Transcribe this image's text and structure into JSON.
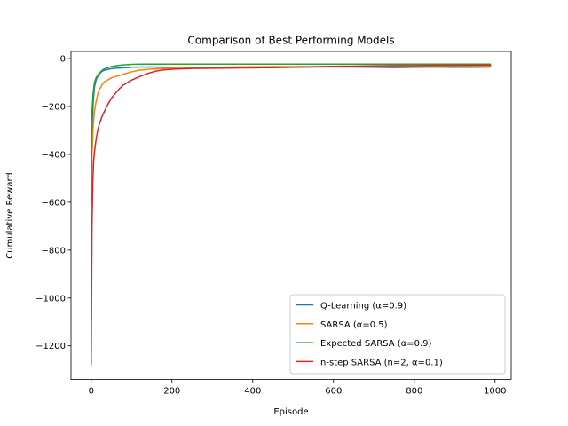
{
  "chart_data": {
    "type": "line",
    "title": "Comparison of Best Performing Models",
    "xlabel": "Episode",
    "ylabel": "Cumulative Reward",
    "xlim": [
      -50,
      1040
    ],
    "ylim": [
      -1340,
      30
    ],
    "xticks": [
      0,
      200,
      400,
      600,
      800,
      1000
    ],
    "yticks": [
      0,
      -200,
      -400,
      -600,
      -800,
      -1000,
      -1200
    ],
    "grid": false,
    "legend_position": "lower-right",
    "series": [
      {
        "name": "Q-Learning (α=0.9)",
        "color": "#1f77b4",
        "x": [
          0,
          2,
          5,
          8,
          12,
          16,
          20,
          25,
          30,
          40,
          50,
          60,
          80,
          100,
          120,
          150,
          200,
          250,
          300,
          350,
          400,
          450,
          500,
          550,
          600,
          650,
          700,
          750,
          800,
          850,
          900,
          950,
          990
        ],
        "y": [
          -590,
          -300,
          -180,
          -120,
          -90,
          -75,
          -65,
          -55,
          -50,
          -45,
          -42,
          -40,
          -38,
          -36,
          -35,
          -35,
          -36,
          -36,
          -36,
          -37,
          -38,
          -37,
          -36,
          -35,
          -34,
          -35,
          -36,
          -37,
          -36,
          -35,
          -36,
          -36,
          -35
        ]
      },
      {
        "name": "SARSA (α=0.5)",
        "color": "#ff7f0e",
        "x": [
          0,
          2,
          5,
          8,
          12,
          16,
          20,
          25,
          30,
          40,
          50,
          60,
          80,
          100,
          120,
          150,
          200,
          250,
          300,
          350,
          400,
          450,
          500,
          550,
          600,
          650,
          700,
          750,
          800,
          850,
          900,
          950,
          990
        ],
        "y": [
          -750,
          -400,
          -280,
          -220,
          -180,
          -150,
          -130,
          -115,
          -100,
          -90,
          -80,
          -75,
          -65,
          -55,
          -48,
          -43,
          -40,
          -38,
          -36,
          -35,
          -34,
          -33,
          -33,
          -33,
          -32,
          -32,
          -32,
          -32,
          -31,
          -31,
          -31,
          -31,
          -31
        ]
      },
      {
        "name": "Expected SARSA (α=0.9)",
        "color": "#2ca02c",
        "x": [
          0,
          2,
          5,
          8,
          12,
          16,
          20,
          25,
          30,
          40,
          50,
          60,
          80,
          100,
          120,
          150,
          200,
          250,
          300,
          350,
          400,
          450,
          500,
          550,
          600,
          650,
          700,
          750,
          800,
          850,
          900,
          950,
          990
        ],
        "y": [
          -600,
          -220,
          -140,
          -100,
          -80,
          -70,
          -60,
          -52,
          -45,
          -38,
          -33,
          -30,
          -26,
          -24,
          -23,
          -23,
          -23,
          -23,
          -23,
          -23,
          -23,
          -23,
          -23,
          -23,
          -23,
          -23,
          -23,
          -23,
          -23,
          -23,
          -23,
          -23,
          -23
        ]
      },
      {
        "name": "n-step SARSA (n=2, α=0.1)",
        "color": "#d62728",
        "x": [
          0,
          2,
          4,
          6,
          8,
          12,
          16,
          20,
          25,
          30,
          40,
          50,
          60,
          70,
          80,
          90,
          100,
          120,
          140,
          160,
          180,
          200,
          250,
          300,
          350,
          400,
          450,
          500,
          550,
          600,
          650,
          700,
          750,
          800,
          850,
          900,
          950,
          990
        ],
        "y": [
          -1280,
          -700,
          -520,
          -430,
          -390,
          -340,
          -300,
          -275,
          -250,
          -230,
          -195,
          -165,
          -145,
          -125,
          -110,
          -100,
          -90,
          -75,
          -62,
          -52,
          -47,
          -44,
          -41,
          -40,
          -39,
          -38,
          -37,
          -36,
          -34,
          -32,
          -31,
          -30,
          -29,
          -29,
          -28,
          -28,
          -27,
          -27
        ]
      }
    ]
  }
}
